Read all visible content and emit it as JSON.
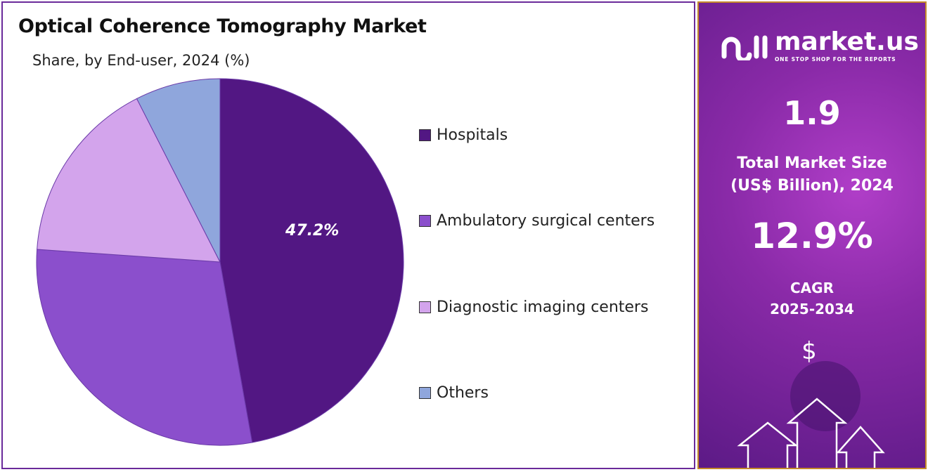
{
  "chart_data": {
    "type": "pie",
    "title": "Optical Coherence Tomography Market",
    "subtitle": "Share, by End-user, 2024 (%)",
    "categories": [
      "Hospitals",
      "Ambulatory surgical centers",
      "Diagnostic imaging centers",
      "Others"
    ],
    "values": [
      47.2,
      28.9,
      16.4,
      7.5
    ],
    "colors": [
      "#521783",
      "#8b4fcc",
      "#d3a4ec",
      "#8fa6dc"
    ],
    "data_labels": [
      "47.2%",
      "",
      "",
      ""
    ],
    "legend_position": "right"
  },
  "side_panel": {
    "logo_text": "market.us",
    "logo_tagline": "ONE STOP SHOP FOR THE REPORTS",
    "market_size_value": "1.9",
    "market_size_label_1": "Total Market Size",
    "market_size_label_2": "(US$ Billion), 2024",
    "cagr_value": "12.9%",
    "cagr_label_1": "CAGR",
    "cagr_label_2": "2025-2034",
    "currency_symbol": "$"
  }
}
